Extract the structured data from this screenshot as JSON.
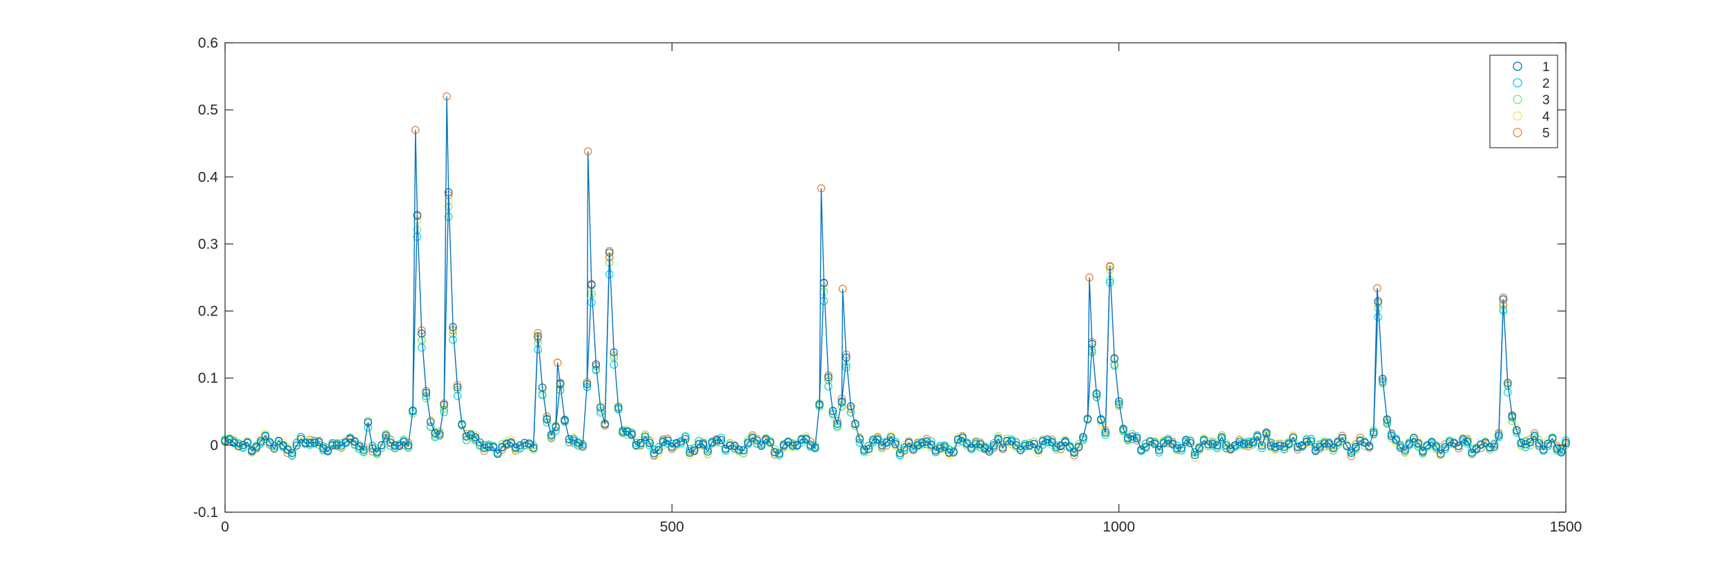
{
  "chart_data": {
    "type": "scatter",
    "title": "",
    "xlabel": "",
    "ylabel": "",
    "xlim": [
      0,
      1500
    ],
    "ylim": [
      -0.1,
      0.6
    ],
    "x_ticks": [
      0,
      500,
      1000,
      1500
    ],
    "x_tick_labels": [
      "0",
      "500",
      "1000",
      "1500"
    ],
    "y_ticks": [
      -0.1,
      0,
      0.1,
      0.2,
      0.3,
      0.4,
      0.5,
      0.6
    ],
    "y_tick_labels": [
      "-0.1",
      "0",
      "0.1",
      "0.2",
      "0.3",
      "0.4",
      "0.5",
      "0.6"
    ],
    "grid": false,
    "box": true,
    "legend": {
      "position": "top-right",
      "entries": [
        "1",
        "2",
        "3",
        "4",
        "5"
      ]
    },
    "line_series": "1",
    "line_color": "#0072BD",
    "x_step": 5,
    "baseline_noise_amplitude": 0.012,
    "peaks": [
      {
        "x": 213,
        "y": 0.47
      },
      {
        "x": 248,
        "y": 0.52
      },
      {
        "x": 350,
        "y": 0.167
      },
      {
        "x": 372,
        "y": 0.123
      },
      {
        "x": 406,
        "y": 0.438
      },
      {
        "x": 430,
        "y": 0.28
      },
      {
        "x": 667,
        "y": 0.383
      },
      {
        "x": 691,
        "y": 0.233
      },
      {
        "x": 967,
        "y": 0.25
      },
      {
        "x": 990,
        "y": 0.267
      },
      {
        "x": 1289,
        "y": 0.234
      },
      {
        "x": 1430,
        "y": 0.21
      }
    ],
    "spikes": [
      {
        "x": 159,
        "y": 0.035
      },
      {
        "x": 1166,
        "y": 0.025
      }
    ],
    "series": [
      {
        "name": "1",
        "color": "#0072BD",
        "scale": 1.0
      },
      {
        "name": "2",
        "color": "#00D4E0",
        "scale": 0.9
      },
      {
        "name": "3",
        "color": "#7FE07F",
        "scale": 0.94
      },
      {
        "name": "4",
        "color": "#F5E64A",
        "scale": 0.97
      },
      {
        "name": "5",
        "color": "#E8823A",
        "scale": 1.0
      }
    ]
  }
}
